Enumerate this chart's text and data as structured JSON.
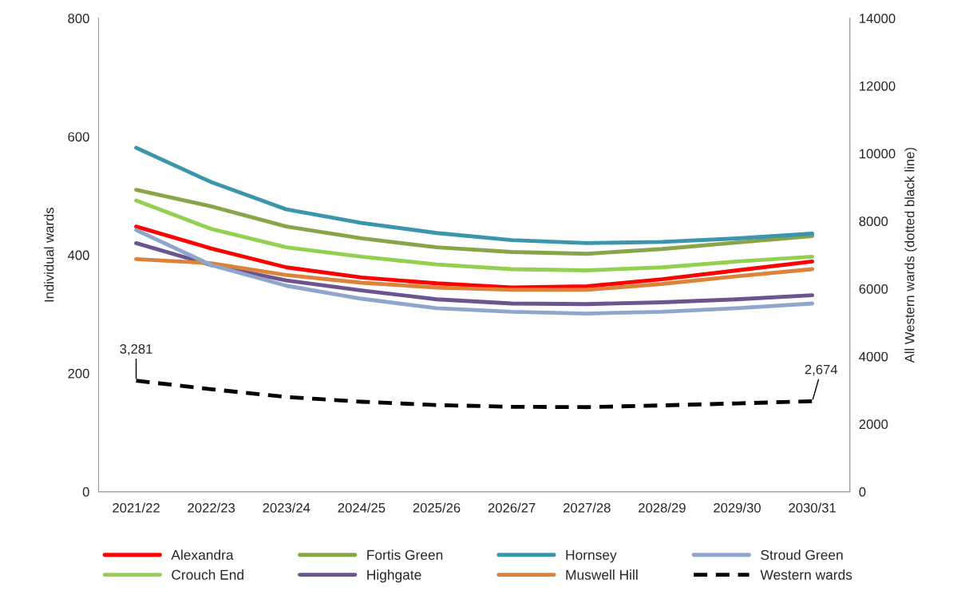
{
  "chart_data": {
    "type": "line",
    "ylabel": "Individual wards",
    "y2label": "All Western wards (dotted black line)",
    "categories": [
      "2021/22",
      "2022/23",
      "2023/24",
      "2024/25",
      "2025/26",
      "2026/27",
      "2027/28",
      "2028/29",
      "2029/30",
      "2030/31"
    ],
    "series": [
      {
        "name": "Alexandra",
        "color": "#ff0000",
        "values": [
          448,
          411,
          379,
          362,
          352,
          345,
          347,
          359,
          374,
          389
        ]
      },
      {
        "name": "Crouch End",
        "color": "#92d050",
        "values": [
          492,
          444,
          413,
          397,
          384,
          376,
          374,
          379,
          389,
          397
        ]
      },
      {
        "name": "Fortis Green",
        "color": "#88a54a",
        "values": [
          510,
          482,
          448,
          428,
          413,
          405,
          402,
          410,
          421,
          432
        ]
      },
      {
        "name": "Highgate",
        "color": "#6b548f",
        "values": [
          420,
          383,
          357,
          340,
          325,
          318,
          317,
          320,
          325,
          332
        ]
      },
      {
        "name": "Hornsey",
        "color": "#3b95ab",
        "values": [
          581,
          523,
          477,
          454,
          437,
          425,
          420,
          422,
          428,
          436
        ]
      },
      {
        "name": "Muswell Hill",
        "color": "#de8239",
        "values": [
          393,
          386,
          366,
          353,
          345,
          341,
          341,
          351,
          364,
          376
        ]
      },
      {
        "name": "Stroud Green",
        "color": "#8ea6cc",
        "values": [
          442,
          383,
          348,
          326,
          310,
          304,
          301,
          304,
          310,
          318
        ]
      },
      {
        "name": "Western wards",
        "color": "#000000",
        "axis": "y2",
        "line_style": "dashed",
        "values": [
          3281,
          3030,
          2800,
          2660,
          2560,
          2510,
          2500,
          2550,
          2610,
          2674
        ],
        "value_labels": [
          "3,281",
          null,
          null,
          null,
          null,
          null,
          null,
          null,
          null,
          "2,674"
        ]
      }
    ],
    "ylim": [
      0,
      800
    ],
    "yticks": [
      0,
      200,
      400,
      600,
      800
    ],
    "y2lim": [
      0,
      14000
    ],
    "y2ticks": [
      0,
      2000,
      4000,
      6000,
      8000,
      10000,
      12000,
      14000
    ],
    "grid": false,
    "legend": "bottom",
    "line_style": "solid",
    "marker": "none"
  }
}
